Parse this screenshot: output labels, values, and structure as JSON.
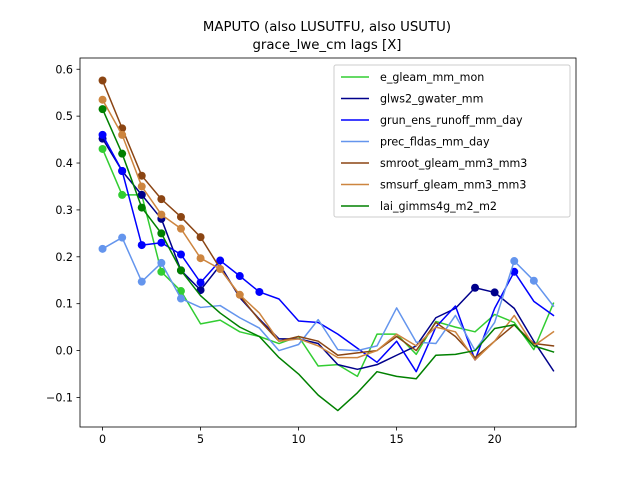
{
  "chart_data": {
    "type": "line",
    "title": "MAPUTO (also LUSUTFU, also USUTU)",
    "subtitle": "grace_lwe_cm lags [X]",
    "xlabel": "",
    "ylabel": "",
    "xlim": [
      -1.15,
      24.15
    ],
    "ylim": [
      -0.163,
      0.624
    ],
    "xticks": [
      0,
      5,
      10,
      15,
      20
    ],
    "xtick_labels": [
      "0",
      "5",
      "10",
      "15",
      "20"
    ],
    "yticks": [
      -0.1,
      0.0,
      0.1,
      0.2,
      0.3,
      0.4,
      0.5,
      0.6
    ],
    "ytick_labels": [
      "−0.1",
      "0.0",
      "0.1",
      "0.2",
      "0.3",
      "0.4",
      "0.5",
      "0.6"
    ],
    "grid": false,
    "legend_position": "upper right",
    "x": [
      0,
      1,
      2,
      3,
      4,
      5,
      6,
      7,
      8,
      9,
      10,
      11,
      12,
      13,
      14,
      15,
      16,
      17,
      18,
      19,
      20,
      21,
      22,
      23
    ],
    "series": [
      {
        "name": "e_gleam_mm_mon",
        "color": "#32cd32",
        "values": [
          0.43,
          0.332,
          0.332,
          0.168,
          0.127,
          0.057,
          0.065,
          0.04,
          0.03,
          0.015,
          0.03,
          -0.033,
          -0.03,
          -0.055,
          0.035,
          0.035,
          -0.008,
          0.062,
          0.05,
          0.04,
          0.077,
          0.06,
          0.002,
          0.101
        ],
        "markers": [
          0,
          1,
          2,
          3,
          4
        ]
      },
      {
        "name": "glws2_gwater_mm",
        "color": "#00008b",
        "values": [
          0.452,
          0.383,
          0.332,
          0.281,
          0.171,
          0.129,
          0.182,
          0.113,
          0.067,
          0.025,
          0.025,
          0.015,
          -0.03,
          -0.04,
          -0.03,
          -0.01,
          0.01,
          0.07,
          0.09,
          0.134,
          0.124,
          0.09,
          0.02,
          -0.043
        ],
        "markers": [
          0,
          1,
          2,
          3,
          4,
          5,
          19,
          20
        ]
      },
      {
        "name": "grun_ens_runoff_mm_day",
        "color": "#0000ff",
        "values": [
          0.46,
          0.383,
          0.225,
          0.23,
          0.205,
          0.145,
          0.192,
          0.159,
          0.125,
          0.11,
          0.063,
          0.06,
          0.035,
          0.005,
          -0.025,
          0.02,
          -0.045,
          0.05,
          0.095,
          -0.02,
          0.09,
          0.168,
          0.105,
          0.075
        ],
        "markers": [
          0,
          1,
          2,
          3,
          4,
          5,
          6,
          7,
          8,
          21
        ]
      },
      {
        "name": "prec_fldas_mm_day",
        "color": "#6495ed",
        "values": [
          0.217,
          0.241,
          0.147,
          0.187,
          0.111,
          0.092,
          0.096,
          0.07,
          0.048,
          0.0,
          0.013,
          0.066,
          0.002,
          0.0,
          0.01,
          0.091,
          0.018,
          0.015,
          0.075,
          0.0,
          0.06,
          0.191,
          0.149,
          0.095
        ],
        "markers": [
          0,
          1,
          2,
          3,
          4,
          21,
          22
        ]
      },
      {
        "name": "smroot_gleam_mm3_mm3",
        "color": "#8b4513",
        "values": [
          0.576,
          0.474,
          0.373,
          0.323,
          0.285,
          0.242,
          0.175,
          0.117,
          0.065,
          0.02,
          0.03,
          0.02,
          -0.01,
          -0.005,
          0.0,
          0.03,
          0.0,
          0.06,
          0.03,
          -0.015,
          0.02,
          0.055,
          0.015,
          0.01
        ],
        "markers": [
          0,
          1,
          2,
          3,
          4,
          5
        ]
      },
      {
        "name": "smsurf_gleam_mm3_mm3",
        "color": "#cd853f",
        "values": [
          0.535,
          0.46,
          0.35,
          0.29,
          0.26,
          0.197,
          0.174,
          0.119,
          0.08,
          0.02,
          0.025,
          0.01,
          -0.015,
          -0.015,
          0.0,
          0.035,
          0.01,
          0.05,
          0.04,
          -0.02,
          0.02,
          0.075,
          0.01,
          0.04
        ],
        "markers": [
          0,
          1,
          2,
          3,
          4,
          5,
          6,
          7
        ]
      },
      {
        "name": "lai_gimms4g_m2_m2",
        "color": "#008000",
        "values": [
          0.515,
          0.42,
          0.305,
          0.25,
          0.171,
          0.117,
          0.08,
          0.05,
          0.03,
          -0.015,
          -0.05,
          -0.095,
          -0.128,
          -0.09,
          -0.045,
          -0.055,
          -0.06,
          -0.01,
          -0.008,
          0.0,
          0.047,
          0.055,
          0.01,
          -0.003
        ],
        "markers": [
          0,
          1,
          2,
          3,
          4
        ]
      }
    ]
  }
}
